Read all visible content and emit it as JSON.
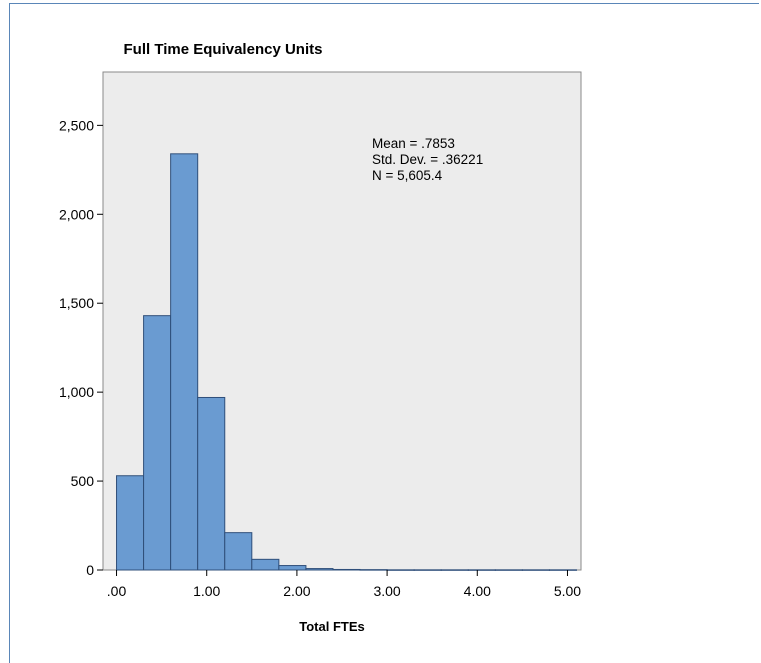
{
  "chart_data": {
    "type": "bar",
    "title": "Full Time Equivalency Units",
    "xlabel": "Total FTEs",
    "ylabel": "",
    "xlim": [
      -0.15,
      5.15
    ],
    "ylim": [
      0,
      2800
    ],
    "xticks": [
      0,
      1,
      2,
      3,
      4,
      5
    ],
    "xtick_labels": [
      ".00",
      "1.00",
      "2.00",
      "3.00",
      "4.00",
      "5.00"
    ],
    "yticks": [
      0,
      500,
      1000,
      1500,
      2000,
      2500
    ],
    "ytick_labels": [
      "0",
      "500",
      "1,000",
      "1,500",
      "2,000",
      "2,500"
    ],
    "bin_width": 0.3,
    "bins": [
      {
        "start": 0.0,
        "end": 0.3,
        "value": 530
      },
      {
        "start": 0.3,
        "end": 0.6,
        "value": 1430
      },
      {
        "start": 0.6,
        "end": 0.9,
        "value": 2340
      },
      {
        "start": 0.9,
        "end": 1.2,
        "value": 970
      },
      {
        "start": 1.2,
        "end": 1.5,
        "value": 210
      },
      {
        "start": 1.5,
        "end": 1.8,
        "value": 60
      },
      {
        "start": 1.8,
        "end": 2.1,
        "value": 25
      },
      {
        "start": 2.1,
        "end": 2.4,
        "value": 8
      },
      {
        "start": 2.4,
        "end": 2.7,
        "value": 3
      },
      {
        "start": 2.7,
        "end": 3.0,
        "value": 2
      },
      {
        "start": 3.0,
        "end": 3.3,
        "value": 1
      },
      {
        "start": 3.3,
        "end": 3.6,
        "value": 1
      },
      {
        "start": 3.6,
        "end": 3.9,
        "value": 1
      },
      {
        "start": 3.9,
        "end": 4.2,
        "value": 1
      },
      {
        "start": 4.2,
        "end": 4.5,
        "value": 1
      },
      {
        "start": 4.5,
        "end": 4.8,
        "value": 1
      },
      {
        "start": 4.8,
        "end": 5.1,
        "value": 1
      }
    ],
    "stats": [
      "Mean = .7853",
      "Std. Dev. = .36221",
      "N = 5,605.4"
    ],
    "grid": false,
    "bar_color": "#6a9bd1",
    "bar_edge_color": "#2f4f7a",
    "plot_background": "#ececec"
  }
}
